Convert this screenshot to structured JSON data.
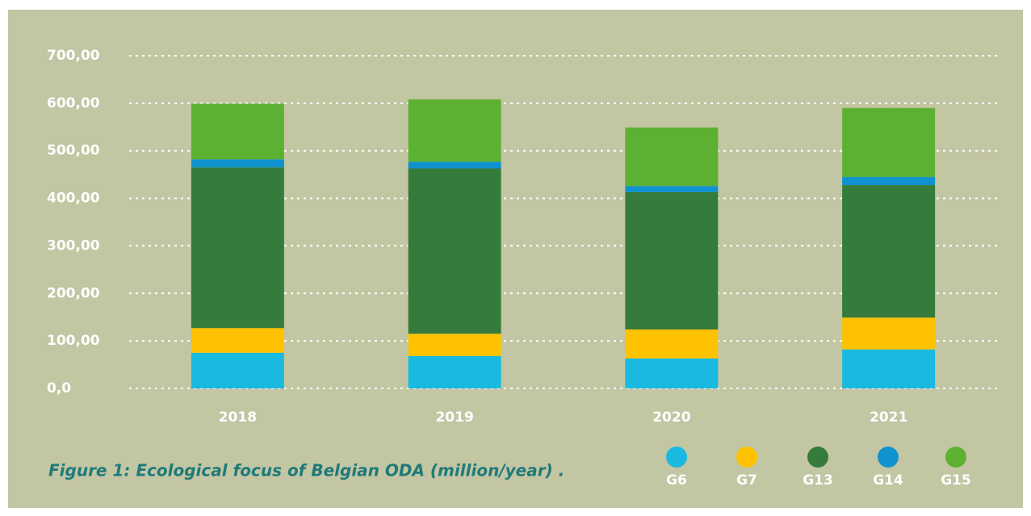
{
  "chart_data": {
    "type": "bar",
    "stacked": true,
    "title": "Figure 1: Ecological focus of Belgian ODA (million/year) .",
    "categories": [
      "2018",
      "2019",
      "2020",
      "2021"
    ],
    "series": [
      {
        "name": "G6",
        "color": "#1ab9e0",
        "values": [
          75,
          68,
          63,
          82
        ]
      },
      {
        "name": "G7",
        "color": "#fec200",
        "values": [
          52,
          47,
          61,
          67
        ]
      },
      {
        "name": "G13",
        "color": "#357b3c",
        "values": [
          338,
          348,
          289,
          279
        ]
      },
      {
        "name": "G14",
        "color": "#0f92cf",
        "values": [
          17,
          14,
          13,
          17
        ]
      },
      {
        "name": "G15",
        "color": "#5db132",
        "values": [
          117,
          131,
          123,
          145
        ]
      }
    ],
    "ylim": [
      0,
      700
    ],
    "yticks": [
      {
        "value": 0,
        "label": "0,0"
      },
      {
        "value": 100,
        "label": "100,00"
      },
      {
        "value": 200,
        "label": "200,00"
      },
      {
        "value": 300,
        "label": "300,00"
      },
      {
        "value": 400,
        "label": "400,00"
      },
      {
        "value": 500,
        "label": "500,00"
      },
      {
        "value": 600,
        "label": "600,00"
      },
      {
        "value": 700,
        "label": "700,00"
      }
    ],
    "grid": true,
    "legend": "bottom-right"
  }
}
